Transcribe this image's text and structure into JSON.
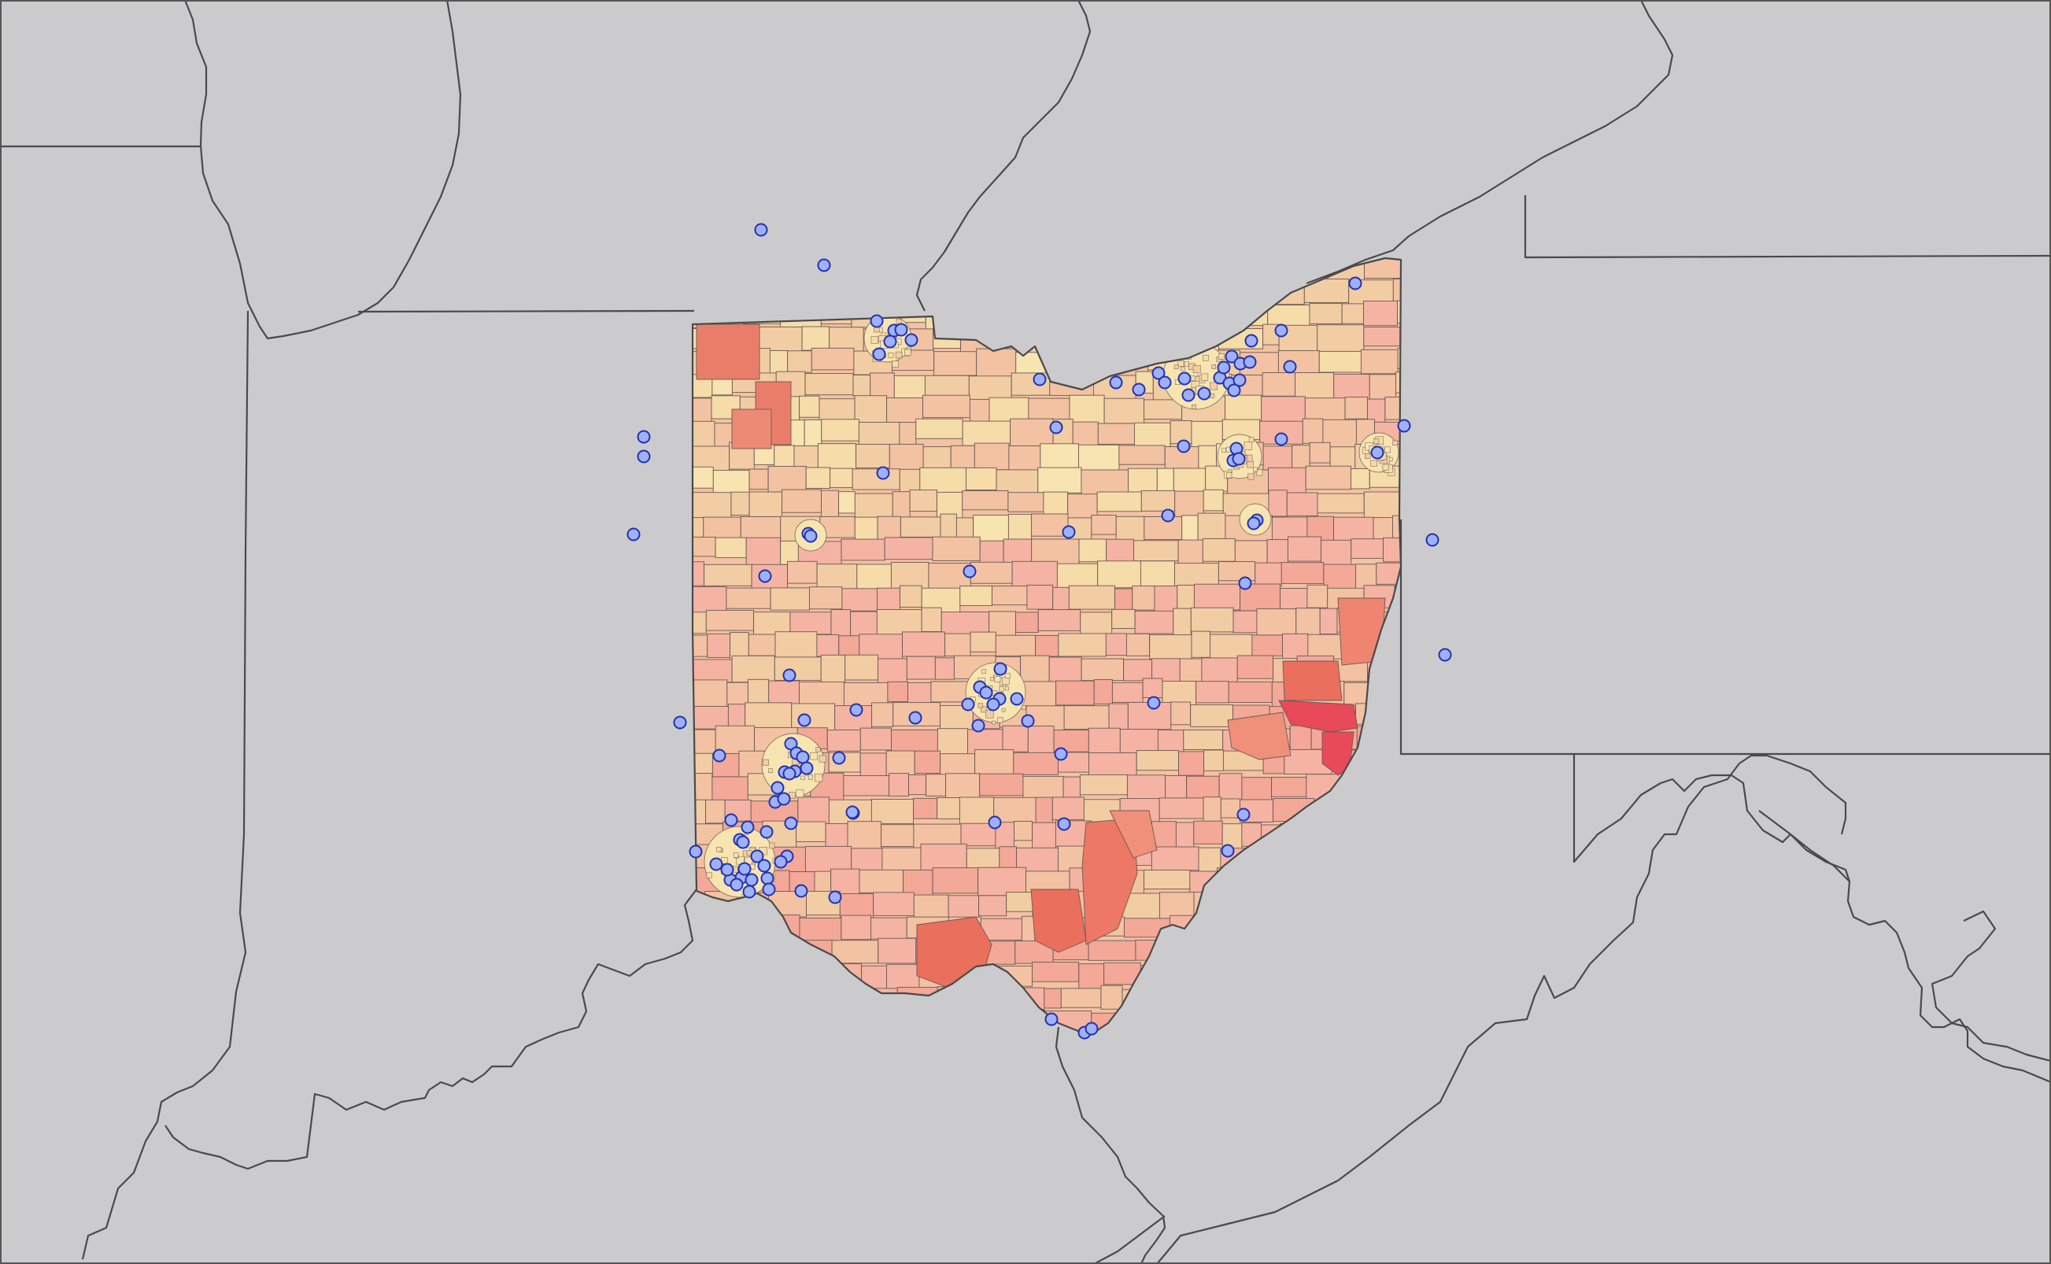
{
  "map": {
    "colors": {
      "background": "#cbcbcd",
      "outline": "#4a4a4a",
      "tract_stroke": "#6a5a55",
      "point_fill": "#9fb0ff",
      "point_stroke": "#2233aa",
      "ramp": [
        "#f7e4b0",
        "#f5dca8",
        "#f2cca3",
        "#f2c2a2",
        "#f5b3a3",
        "#f3a898",
        "#f0907a",
        "#ea6f5d",
        "#e84a5a"
      ]
    },
    "regions": [
      {
        "id": "lake-michigan",
        "kind": "water"
      },
      {
        "id": "lake-erie",
        "kind": "water"
      },
      {
        "id": "michigan",
        "kind": "state"
      },
      {
        "id": "indiana",
        "kind": "state"
      },
      {
        "id": "kentucky",
        "kind": "state"
      },
      {
        "id": "west-virginia",
        "kind": "state"
      },
      {
        "id": "pennsylvania",
        "kind": "state"
      },
      {
        "id": "new-york",
        "kind": "state"
      },
      {
        "id": "virginia",
        "kind": "state"
      },
      {
        "id": "maryland",
        "kind": "state"
      },
      {
        "id": "ohio",
        "kind": "focus-state"
      }
    ],
    "point_count": 111
  }
}
